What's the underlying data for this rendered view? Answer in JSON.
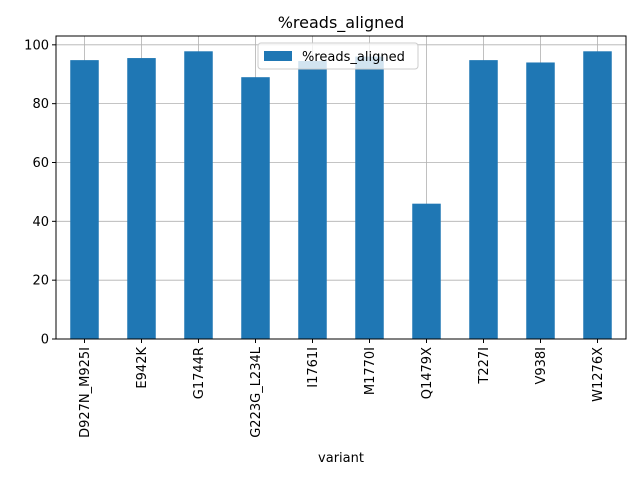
{
  "chart_data": {
    "type": "bar",
    "title": "%reads_aligned",
    "xlabel": "variant",
    "ylabel": "",
    "categories": [
      "D927N_M925I",
      "E942K",
      "G1744R",
      "G223G_L234L",
      "I1761I",
      "M1770I",
      "Q1479X",
      "T227I",
      "V938I",
      "W1276X"
    ],
    "series": [
      {
        "name": "%reads_aligned",
        "values": [
          94.8,
          95.5,
          97.8,
          89.0,
          94.5,
          96.0,
          46.0,
          94.8,
          94.0,
          97.8
        ],
        "color": "#1f77b4"
      }
    ],
    "ylim": [
      0,
      103
    ],
    "yticks": [
      0,
      20,
      40,
      60,
      80,
      100
    ],
    "grid": true,
    "legend_position": "top-center"
  }
}
